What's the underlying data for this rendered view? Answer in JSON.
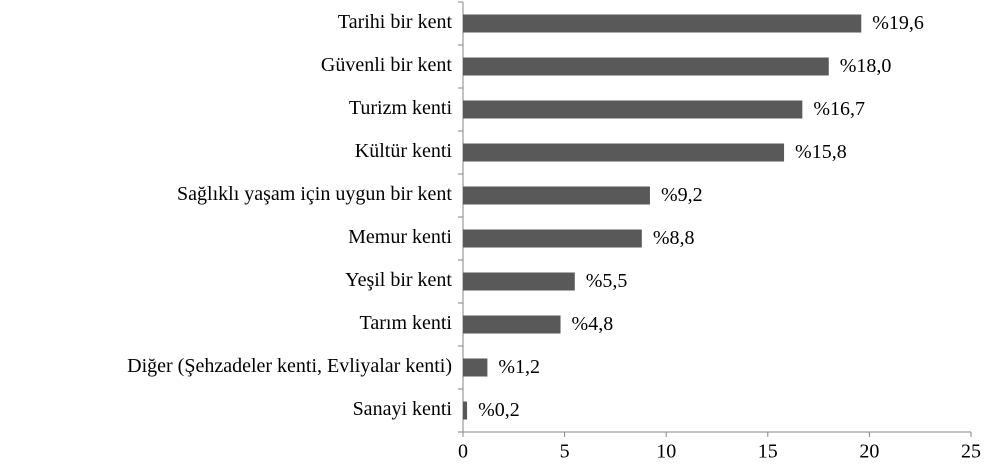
{
  "chart_data": {
    "type": "bar",
    "orientation": "horizontal",
    "categories": [
      "Tarihi bir kent",
      "Güvenli bir kent",
      "Turizm kenti",
      "Kültür kenti",
      "Sağlıklı yaşam için uygun bir kent",
      "Memur kenti",
      "Yeşil bir kent",
      "Tarım kenti",
      "Diğer (Şehzadeler kenti, Evliyalar kenti)",
      "Sanayi kenti"
    ],
    "values": [
      19.6,
      18.0,
      16.7,
      15.8,
      9.2,
      8.8,
      5.5,
      4.8,
      1.2,
      0.2
    ],
    "value_labels": [
      "%19,6",
      "%18,0",
      "%16,7",
      "%15,8",
      "%9,2",
      "%8,8",
      "%5,5",
      "%4,8",
      "%1,2",
      "%0,2"
    ],
    "color": "#595959",
    "xlim": [
      0,
      25
    ],
    "xticks": [
      0,
      5,
      10,
      15,
      20,
      25
    ]
  }
}
